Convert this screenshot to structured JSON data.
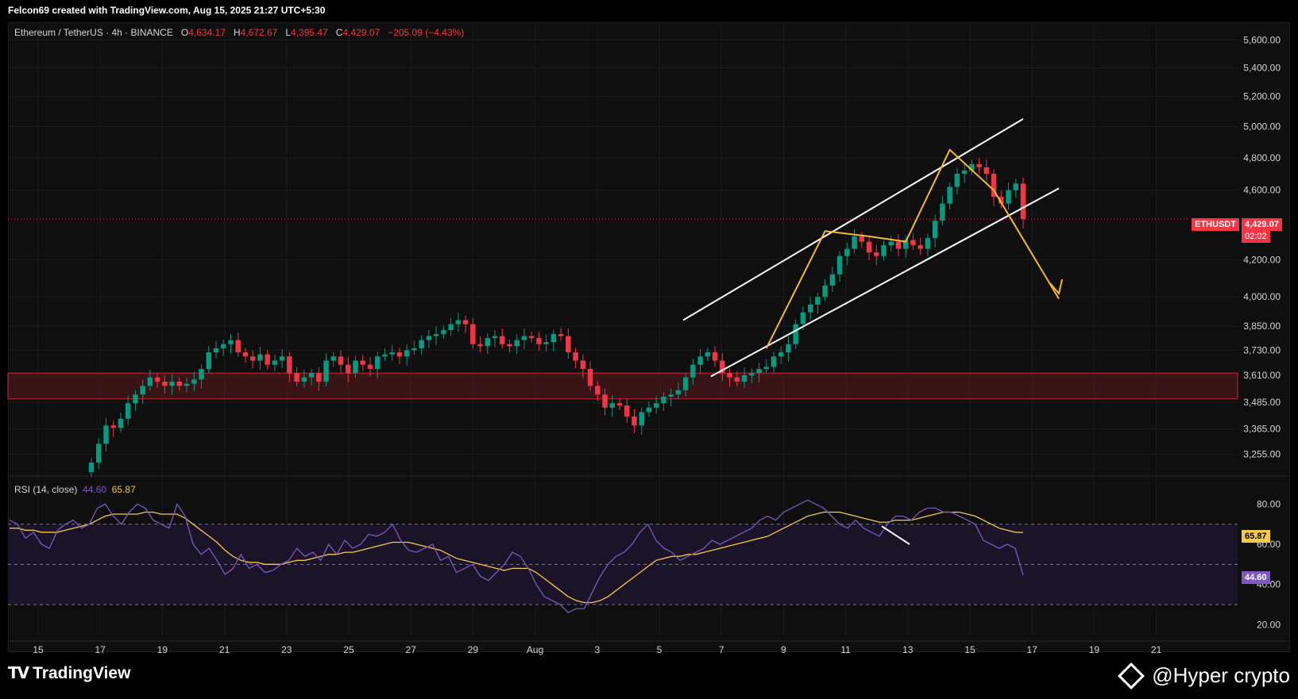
{
  "credit": "Felcon69 created with TradingView.com, Aug 15, 2025 21:27 UTC+5:30",
  "legend": {
    "symbol": "Ethereum / TetherUS · 4h · BINANCE",
    "o_label": "O",
    "o": "4,634.17",
    "h_label": "H",
    "h": "4,672.67",
    "l_label": "L",
    "l": "4,395.47",
    "c_label": "C",
    "c": "4,429.07",
    "change": "−205.09 (−4.43%)"
  },
  "rsi_legend": {
    "label": "RSI (14, close)",
    "rsi": "44.60",
    "ma": "65.87"
  },
  "price_tag": {
    "symbol": "ETHUSDT",
    "price": "4,429.07",
    "countdown": "02:02"
  },
  "rsi_tags": {
    "ma": "65.87",
    "rsi": "44.60"
  },
  "brand": "TradingView",
  "watermark": "@Hyper crypto",
  "colors": {
    "up": "#089981",
    "down": "#f23645",
    "rsi": "#7e57c2",
    "rsi_ma": "#f7c948",
    "pattern": "#f7b731",
    "channel": "#ffffff",
    "zone": "#5c1a1f"
  },
  "chart_data": [
    {
      "type": "candlestick",
      "title": "Ethereum / TetherUS · 4h · BINANCE",
      "price_axis_ticks": [
        3255,
        3365,
        3485,
        3610,
        3730,
        3850,
        4000,
        4200,
        4429.07,
        4600,
        4800,
        5000,
        5200,
        5400,
        5600
      ],
      "price_axis_labels": [
        "3,255.00",
        "3,365.00",
        "3,485.00",
        "3,610.00",
        "3,730.00",
        "3,850.00",
        "4,000.00",
        "4,200.00",
        "4,600.00",
        "4,800.00",
        "5,000.00",
        "5,200.00",
        "5,400.00",
        "5,600.00"
      ],
      "x_axis_labels": [
        "15",
        "17",
        "19",
        "21",
        "23",
        "25",
        "27",
        "29",
        "Aug",
        "3",
        "5",
        "7",
        "9",
        "11",
        "13",
        "15",
        "17",
        "19",
        "21"
      ],
      "scale": "log",
      "ylim": [
        3180,
        5720
      ],
      "support_zone": [
        3500,
        3620
      ],
      "close_prices": [
        3220,
        3300,
        3380,
        3370,
        3410,
        3480,
        3520,
        3560,
        3600,
        3580,
        3560,
        3580,
        3560,
        3570,
        3590,
        3640,
        3720,
        3740,
        3760,
        3780,
        3720,
        3700,
        3680,
        3710,
        3660,
        3680,
        3700,
        3620,
        3580,
        3600,
        3620,
        3580,
        3680,
        3700,
        3660,
        3620,
        3680,
        3660,
        3640,
        3700,
        3710,
        3720,
        3700,
        3730,
        3740,
        3780,
        3800,
        3810,
        3830,
        3860,
        3880,
        3860,
        3760,
        3750,
        3790,
        3800,
        3760,
        3750,
        3780,
        3800,
        3790,
        3760,
        3770,
        3810,
        3800,
        3720,
        3680,
        3640,
        3560,
        3520,
        3460,
        3480,
        3470,
        3420,
        3380,
        3440,
        3460,
        3480,
        3510,
        3520,
        3540,
        3600,
        3660,
        3700,
        3720,
        3680,
        3620,
        3600,
        3580,
        3610,
        3620,
        3640,
        3650,
        3700,
        3720,
        3760,
        3860,
        3920,
        3960,
        4000,
        4060,
        4120,
        4220,
        4260,
        4330,
        4300,
        4240,
        4220,
        4280,
        4300,
        4260,
        4310,
        4280,
        4260,
        4320,
        4420,
        4520,
        4620,
        4700,
        4720,
        4760,
        4740,
        4700,
        4560,
        4520,
        4600,
        4640,
        4429.07
      ],
      "candle_count": 128,
      "channel_upper": [
        [
          0.0,
          3880
        ],
        [
          1.0,
          5050
        ]
      ],
      "channel_lower": [
        [
          0.0,
          3560
        ],
        [
          1.0,
          4640
        ]
      ]
    },
    {
      "type": "line",
      "title": "RSI (14, close)",
      "ylim": [
        15,
        90
      ],
      "levels": [
        70,
        50,
        30
      ],
      "y_axis_labels": [
        "80.00",
        "60.00",
        "40.00",
        "20.00"
      ],
      "series": [
        {
          "name": "RSI",
          "values": [
            72,
            70,
            63,
            66,
            60,
            58,
            67,
            70,
            72,
            68,
            70,
            78,
            80,
            74,
            70,
            76,
            80,
            78,
            72,
            70,
            68,
            80,
            74,
            60,
            55,
            58,
            52,
            45,
            48,
            55,
            48,
            50,
            46,
            47,
            50,
            52,
            58,
            54,
            56,
            52,
            60,
            55,
            62,
            58,
            60,
            65,
            64,
            66,
            70,
            62,
            57,
            56,
            58,
            60,
            52,
            54,
            46,
            48,
            50,
            44,
            42,
            46,
            50,
            56,
            54,
            48,
            40,
            34,
            32,
            30,
            26,
            28,
            28,
            36,
            44,
            50,
            54,
            56,
            60,
            66,
            70,
            62,
            58,
            56,
            52,
            54,
            56,
            58,
            62,
            60,
            62,
            64,
            66,
            68,
            72,
            74,
            72,
            76,
            78,
            80,
            82,
            80,
            78,
            74,
            70,
            68,
            72,
            68,
            66,
            64,
            70,
            74,
            74,
            72,
            76,
            78,
            78,
            76,
            76,
            74,
            72,
            70,
            62,
            60,
            58,
            60,
            58,
            44.6
          ]
        },
        {
          "name": "RSI-based MA",
          "values": [
            68,
            68,
            67,
            67,
            66,
            66,
            66,
            67,
            68,
            69,
            70,
            72,
            74,
            75,
            75,
            75,
            75,
            76,
            76,
            75,
            75,
            75,
            73,
            70,
            67,
            64,
            61,
            57,
            54,
            52,
            51,
            51,
            50,
            50,
            50,
            51,
            52,
            52,
            53,
            54,
            55,
            55,
            56,
            56,
            57,
            58,
            59,
            60,
            61,
            61,
            61,
            60,
            59,
            58,
            57,
            55,
            53,
            52,
            51,
            50,
            49,
            48,
            47,
            48,
            48,
            48,
            46,
            43,
            40,
            37,
            34,
            32,
            31,
            31,
            32,
            34,
            37,
            40,
            43,
            46,
            49,
            52,
            53,
            54,
            54,
            55,
            55,
            56,
            57,
            58,
            59,
            60,
            61,
            62,
            63,
            64,
            66,
            68,
            70,
            72,
            74,
            75,
            76,
            76,
            76,
            75,
            74,
            73,
            72,
            71,
            71,
            72,
            72,
            72,
            73,
            74,
            75,
            76,
            76,
            76,
            75,
            74,
            72,
            70,
            68,
            67,
            66,
            65.87
          ]
        }
      ]
    }
  ]
}
